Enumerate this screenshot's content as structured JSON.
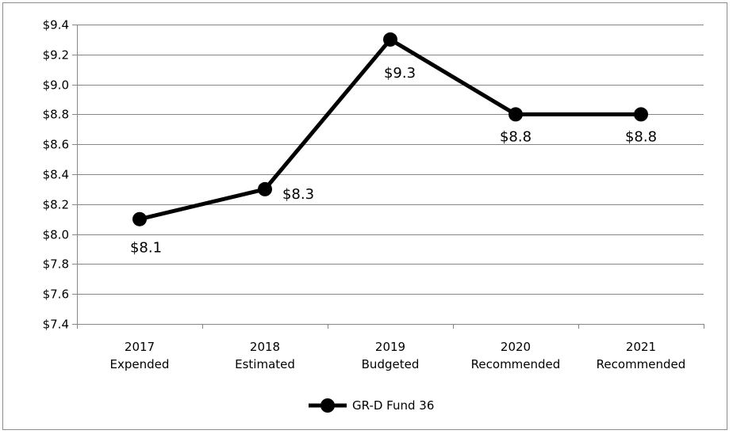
{
  "chart_data": {
    "type": "line",
    "title": "",
    "xlabel": "",
    "ylabel": "",
    "categories": [
      [
        "2017",
        "Expended"
      ],
      [
        "2018",
        "Estimated"
      ],
      [
        "2019",
        "Budgeted"
      ],
      [
        "2020",
        "Recommended"
      ],
      [
        "2021",
        "Recommended"
      ]
    ],
    "series": [
      {
        "name": "GR-D Fund 36",
        "values": [
          8.1,
          8.3,
          9.3,
          8.8,
          8.8
        ],
        "labels": [
          "$8.1",
          "$8.3",
          "$9.3",
          "$8.8",
          "$8.8"
        ],
        "color": "#000000"
      }
    ],
    "ylim": [
      7.4,
      9.4
    ],
    "yticks": [
      7.4,
      7.6,
      7.8,
      8.0,
      8.2,
      8.4,
      8.6,
      8.8,
      9.0,
      9.2,
      9.4
    ],
    "ytick_labels": [
      "$7.4",
      "$7.6",
      "$7.8",
      "$8.0",
      "$8.2",
      "$8.4",
      "$8.6",
      "$8.8",
      "$9.0",
      "$9.2",
      "$9.4"
    ],
    "grid": true,
    "grid_color": "#868686",
    "legend": "bottom-center"
  }
}
